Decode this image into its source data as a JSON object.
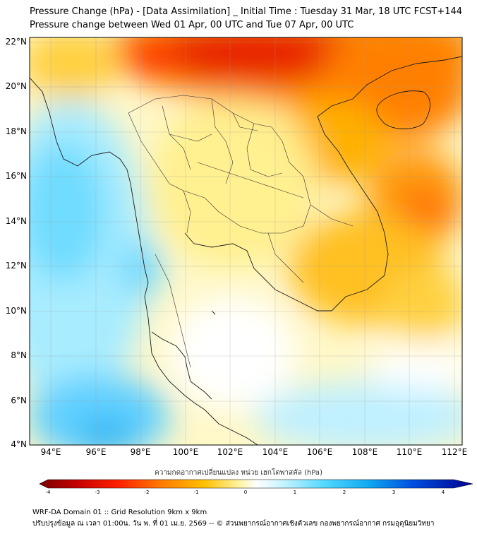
{
  "header": {
    "title_line1": "Pressure Change (hPa) - [Data Assimilation] _ Initial Time : Tuesday 31 Mar, 18 UTC FCST+144",
    "title_line2": "Pressure change between Wed 01 Apr, 00 UTC and Tue 07 Apr, 00 UTC"
  },
  "map": {
    "lat_labels": [
      "22°N",
      "20°N",
      "18°N",
      "16°N",
      "14°N",
      "12°N",
      "10°N",
      "8°N",
      "6°N",
      "4°N"
    ],
    "lon_labels": [
      "94°E",
      "96°E",
      "98°E",
      "100°E",
      "102°E",
      "104°E",
      "106°E",
      "108°E",
      "110°E",
      "112°E"
    ]
  },
  "colorbar": {
    "title": "ความกดอากาศเปลี่ยนแปลง หน่วย เฮกโตพาสคัล (hPa)",
    "min": -4,
    "max": 4,
    "ticks": [
      "-4",
      "-3",
      "-2",
      "-1",
      "0",
      "1",
      "2",
      "3",
      "4"
    ]
  },
  "footer": {
    "line1": "WRF-DA Domain 01 :: Grid Resolution 9km x 9km",
    "line2": "ปรับปรุงข้อมูล ณ เวลา 01:00น. วัน พ. ที่ 01 เม.ย. 2569 -- © ส่วนพยากรณ์อากาศเชิงตัวเลข กองพยากรณ์อากาศ กรมอุตุนิยมวิทยา"
  }
}
